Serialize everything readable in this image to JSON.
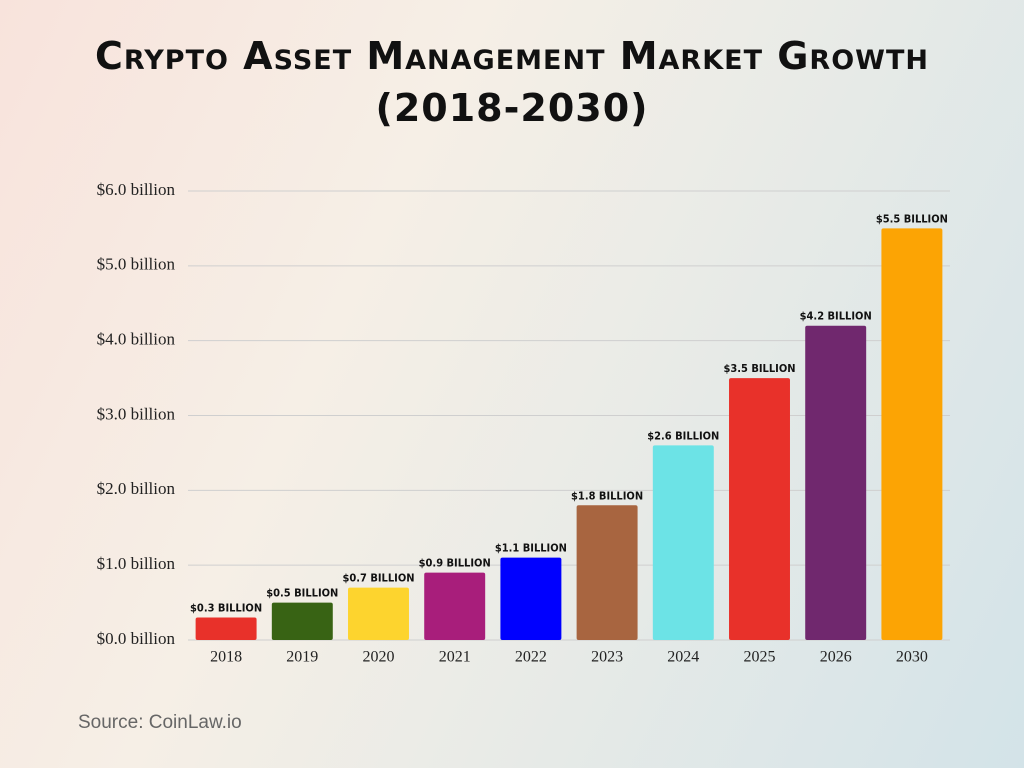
{
  "chart_data": {
    "type": "bar",
    "title": "Crypto Asset Management Market Growth (2018-2030)",
    "source": "Source: CoinLaw.io",
    "categories": [
      "2018",
      "2019",
      "2020",
      "2021",
      "2022",
      "2023",
      "2024",
      "2025",
      "2026",
      "2030"
    ],
    "values": [
      0.3,
      0.5,
      0.7,
      0.9,
      1.1,
      1.8,
      2.6,
      3.5,
      4.2,
      5.5
    ],
    "value_labels": [
      "$0.3 BILLION",
      "$0.5 BILLION",
      "$0.7 BILLION",
      "$0.9 BILLION",
      "$1.1 BILLION",
      "$1.8 BILLION",
      "$2.6 BILLION",
      "$3.5 BILLION",
      "$4.2 BILLION",
      "$5.5 BILLION"
    ],
    "colors": [
      "#e8312a",
      "#386314",
      "#fdd42e",
      "#a81e7b",
      "#0000ff",
      "#a86540",
      "#6ce3e6",
      "#e8312a",
      "#70286e",
      "#fca404"
    ],
    "ylim": [
      0,
      6
    ],
    "yticks": [
      {
        "value": 0,
        "label": "$0.0 billion"
      },
      {
        "value": 1,
        "label": "$1.0 billion"
      },
      {
        "value": 2,
        "label": "$2.0 billion"
      },
      {
        "value": 3,
        "label": "$3.0 billion"
      },
      {
        "value": 4,
        "label": "$4.0 billion"
      },
      {
        "value": 5,
        "label": "$5.0 billion"
      },
      {
        "value": 6,
        "label": "$6.0 billion"
      }
    ],
    "grid": true
  }
}
